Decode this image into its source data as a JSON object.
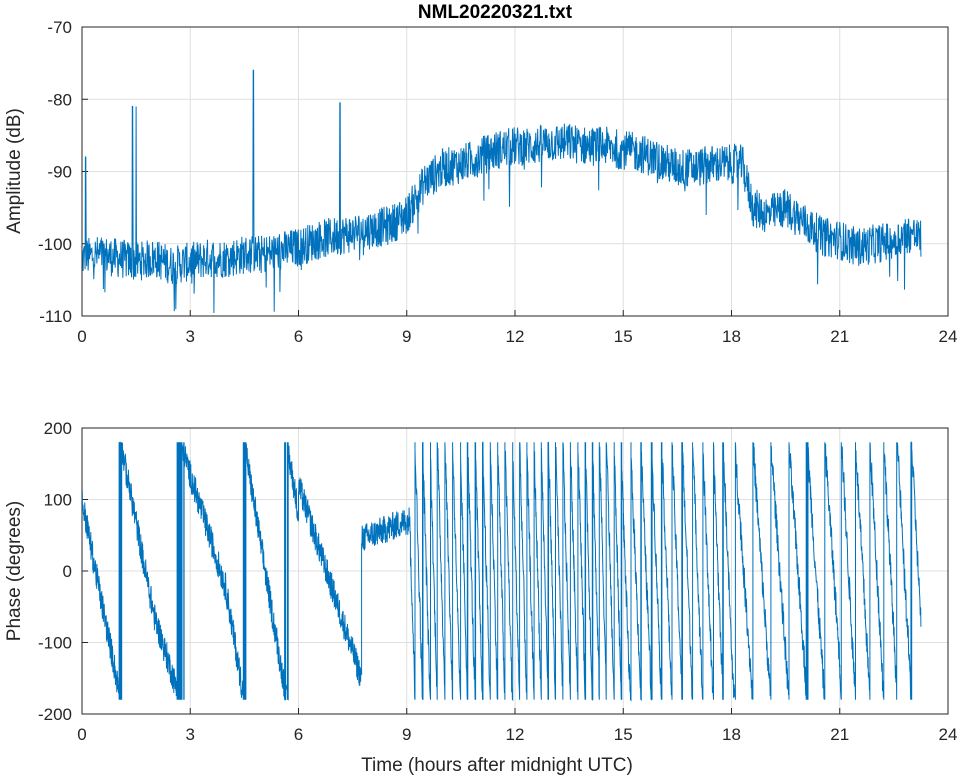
{
  "chart_data": [
    {
      "type": "line",
      "title": "NML20220321.txt",
      "xlabel": "",
      "ylabel": "Amplitude (dB)",
      "xlim": [
        0,
        24
      ],
      "ylim": [
        -110,
        -70
      ],
      "xticks": [
        "0",
        "3",
        "6",
        "9",
        "12",
        "15",
        "18",
        "21",
        "24"
      ],
      "yticks": [
        "-70",
        "-80",
        "-90",
        "-100",
        "-110"
      ],
      "grid": true,
      "line_color": "#0072BD",
      "series": [
        {
          "x": [
            0.0,
            0.5,
            1.0,
            1.5,
            2.0,
            2.5,
            3.0,
            3.5,
            4.0,
            4.5,
            5.0,
            5.5,
            6.0,
            6.5,
            7.0,
            7.5,
            8.0,
            8.5,
            9.0,
            9.5,
            10.0,
            10.5,
            11.0,
            11.5,
            12.0,
            12.5,
            13.0,
            13.5,
            14.0,
            14.5,
            15.0,
            15.5,
            16.0,
            16.5,
            17.0,
            17.5,
            18.0,
            18.3,
            18.6,
            19.0,
            19.5,
            20.0,
            20.5,
            21.0,
            21.5,
            22.0,
            22.5,
            23.0,
            23.25
          ],
          "y": [
            -102,
            -101.5,
            -102,
            -102.5,
            -102,
            -103,
            -102.5,
            -102,
            -102,
            -101.5,
            -101.5,
            -101,
            -100.5,
            -99.5,
            -99,
            -98.5,
            -98,
            -97.5,
            -96,
            -91.5,
            -89.5,
            -89,
            -88,
            -87,
            -86.5,
            -86.5,
            -86,
            -86,
            -86.5,
            -86.5,
            -87,
            -87.5,
            -88.5,
            -89.5,
            -89.5,
            -89,
            -89,
            -89,
            -95,
            -96,
            -95,
            -97,
            -99,
            -99.5,
            -100.5,
            -100,
            -99.5,
            -98.5,
            -99.5
          ]
        }
      ],
      "spikes": [
        {
          "x": 0.1,
          "y": -88
        },
        {
          "x": 1.4,
          "y": -81
        },
        {
          "x": 1.5,
          "y": -81
        },
        {
          "x": 4.75,
          "y": -76
        },
        {
          "x": 7.15,
          "y": -80.5
        }
      ]
    },
    {
      "type": "line",
      "title": "",
      "xlabel": "Time (hours after midnight UTC)",
      "ylabel": "Phase (degrees)",
      "xlim": [
        0,
        24
      ],
      "ylim": [
        -200,
        200
      ],
      "xticks": [
        "0",
        "3",
        "6",
        "9",
        "12",
        "15",
        "18",
        "21",
        "24"
      ],
      "yticks": [
        "200",
        "100",
        "0",
        "-100",
        "-200"
      ],
      "grid": true,
      "line_color": "#0072BD",
      "wrap_limits": [
        -180,
        180
      ],
      "segments": [
        {
          "x0": 0.0,
          "x1": 2.0,
          "rate": -0.72
        },
        {
          "x0": 2.0,
          "x1": 4.0,
          "rate": -0.45
        },
        {
          "x0": 4.0,
          "x1": 6.0,
          "rate": -0.85
        },
        {
          "x0": 6.0,
          "x1": 7.75,
          "slope": -155,
          "start": 120
        },
        {
          "x0": 7.75,
          "x1": 9.1,
          "start": 45,
          "slope": 20
        },
        {
          "x0": 9.1,
          "x1": 15.0,
          "rate": -4.9
        },
        {
          "x0": 15.0,
          "x1": 18.0,
          "rate": -3.5
        },
        {
          "x0": 18.0,
          "x1": 21.0,
          "rate": -2.0
        },
        {
          "x0": 21.0,
          "x1": 23.25,
          "rate": -2.6
        }
      ]
    }
  ]
}
